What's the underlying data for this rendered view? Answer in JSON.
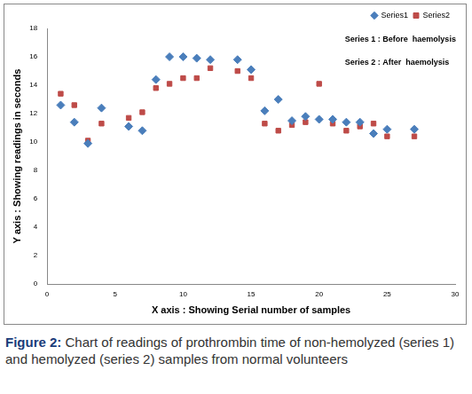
{
  "chart_data": {
    "type": "scatter",
    "x_label": "X axis : Showing Serial number of samples",
    "y_label": "Y axis : Showing readings in seconds",
    "annotations": [
      "Series 1 : Before  haemolysis",
      "Series 2 : After  haemolysis"
    ],
    "caption": "Figure 2: Chart of readings of prothrombin time of non-hemolyzed (series 1) and hemolyzed (series 2) samples from normal volunteers",
    "x": [
      1,
      2,
      3,
      4,
      6,
      7,
      8,
      9,
      10,
      11,
      12,
      14,
      15,
      16,
      17,
      18,
      19,
      20,
      21,
      22,
      23,
      24,
      25,
      27
    ],
    "series": [
      {
        "name": "Series1",
        "color": "#4a7ebb",
        "marker": "diamond",
        "values": [
          12.6,
          11.4,
          9.9,
          12.4,
          11.1,
          10.8,
          14.4,
          16.0,
          16.0,
          15.9,
          15.8,
          15.8,
          15.1,
          12.2,
          13.0,
          11.5,
          11.8,
          11.6,
          11.6,
          11.4,
          11.4,
          10.6,
          10.9,
          10.9
        ]
      },
      {
        "name": "Series2",
        "color": "#be4b48",
        "marker": "square",
        "values": [
          13.4,
          12.6,
          10.1,
          11.3,
          11.7,
          12.1,
          13.8,
          14.1,
          14.5,
          14.5,
          15.2,
          15.0,
          14.5,
          11.3,
          10.8,
          11.2,
          11.4,
          14.1,
          11.3,
          10.8,
          11.1,
          11.3,
          10.4,
          10.4
        ]
      }
    ],
    "xlim": [
      0,
      30
    ],
    "xticks": [
      0,
      5,
      10,
      15,
      20,
      25,
      30
    ],
    "ylim": [
      0,
      18
    ],
    "yticks": [
      0,
      2,
      4,
      6,
      8,
      10,
      12,
      14,
      16,
      18
    ],
    "grid": false,
    "legend": "top-right"
  }
}
